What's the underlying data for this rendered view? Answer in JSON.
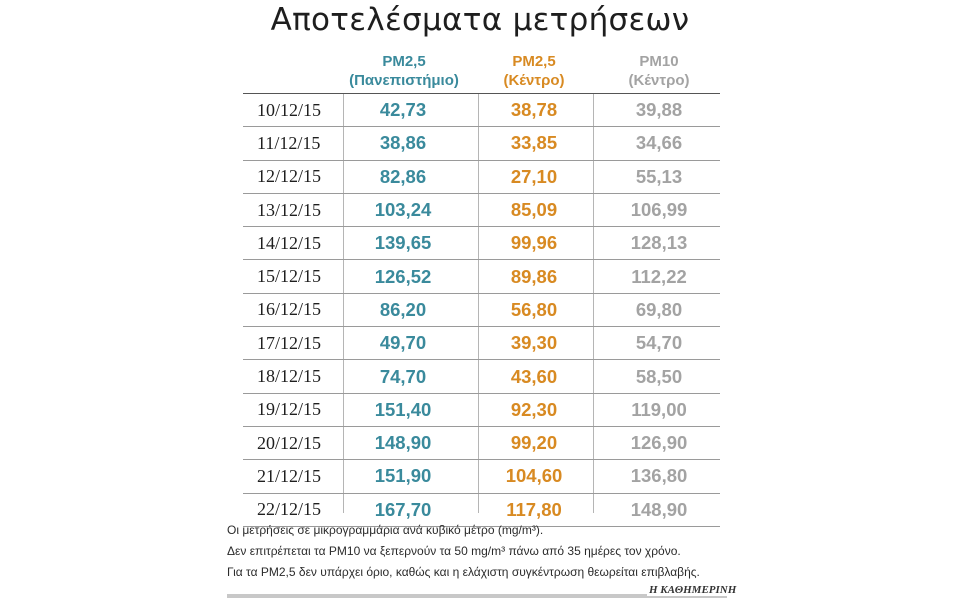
{
  "title": "Αποτελέσματα μετρήσεων",
  "columns": [
    {
      "line1": "PM2,5",
      "line2": "(Πανεπιστήμιο)",
      "color": "#3a8a9c"
    },
    {
      "line1": "PM2,5",
      "line2": "(Κέντρο)",
      "color": "#d88a22"
    },
    {
      "line1": "PM10",
      "line2": "(Κέντρο)",
      "color": "#a3a3a3"
    }
  ],
  "chart_data": {
    "type": "table",
    "title": "Αποτελέσματα μετρήσεων",
    "columns": [
      "PM2,5 (Πανεπιστήμιο)",
      "PM2,5 (Κέντρο)",
      "PM10 (Κέντρο)"
    ],
    "rows": [
      {
        "date": "10/12/15",
        "v1": "42,73",
        "v2": "38,78",
        "v3": "39,88"
      },
      {
        "date": "11/12/15",
        "v1": "38,86",
        "v2": "33,85",
        "v3": "34,66"
      },
      {
        "date": "12/12/15",
        "v1": "82,86",
        "v2": "27,10",
        "v3": "55,13"
      },
      {
        "date": "13/12/15",
        "v1": "103,24",
        "v2": "85,09",
        "v3": "106,99"
      },
      {
        "date": "14/12/15",
        "v1": "139,65",
        "v2": "99,96",
        "v3": "128,13"
      },
      {
        "date": "15/12/15",
        "v1": "126,52",
        "v2": "89,86",
        "v3": "112,22"
      },
      {
        "date": "16/12/15",
        "v1": "86,20",
        "v2": "56,80",
        "v3": "69,80"
      },
      {
        "date": "17/12/15",
        "v1": "49,70",
        "v2": "39,30",
        "v3": "54,70"
      },
      {
        "date": "18/12/15",
        "v1": "74,70",
        "v2": "43,60",
        "v3": "58,50"
      },
      {
        "date": "19/12/15",
        "v1": "151,40",
        "v2": "92,30",
        "v3": "119,00"
      },
      {
        "date": "20/12/15",
        "v1": "148,90",
        "v2": "99,20",
        "v3": "126,90"
      },
      {
        "date": "21/12/15",
        "v1": "151,90",
        "v2": "104,60",
        "v3": "136,80"
      },
      {
        "date": "22/12/15",
        "v1": "167,70",
        "v2": "117,80",
        "v3": "148,90"
      }
    ]
  },
  "notes": [
    "Οι μετρήσεις σε μικρογραμμάρια ανά κυβικό μέτρο (mg/m³).",
    "Δεν επιτρέπεται τα PM10 να ξεπερνούν τα 50 mg/m³ πάνω από 35 ημέρες τον χρόνο.",
    "Για τα PM2,5 δεν υπάρχει όριο, καθώς και η ελάχιστη συγκέντρωση θεωρείται επιβλαβής."
  ],
  "brand": "Η ΚΑΘΗΜΕΡΙΝΗ"
}
